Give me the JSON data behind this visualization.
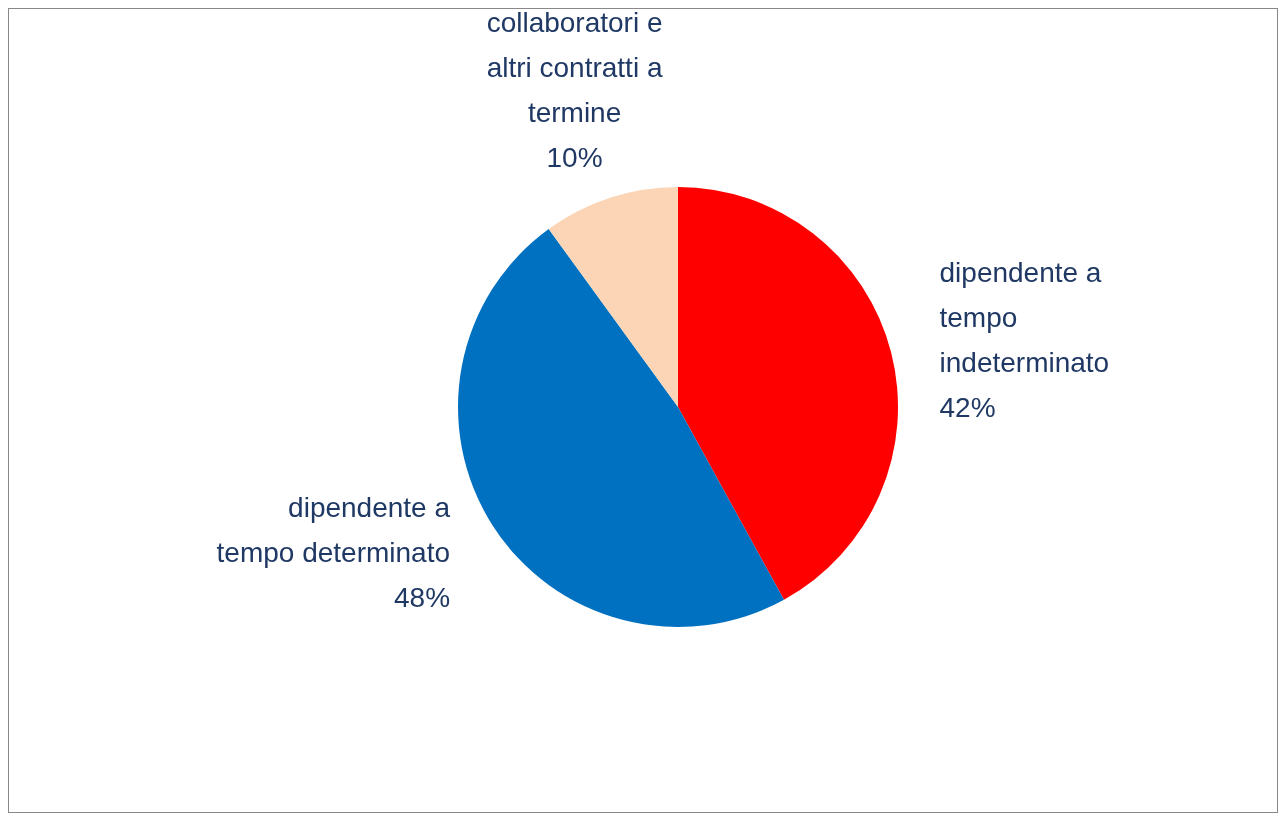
{
  "chart_data": {
    "type": "pie",
    "categories": [
      "dipendente a tempo indeterminato",
      "dipendente a tempo determinato",
      "collaboratori e altri contratti a termine"
    ],
    "values": [
      42,
      48,
      10
    ],
    "colors": [
      "#ff0000",
      "#0070c0",
      "#fbd5b5"
    ],
    "value_labels": [
      "42%",
      "48%",
      "10%"
    ],
    "legend": false
  }
}
